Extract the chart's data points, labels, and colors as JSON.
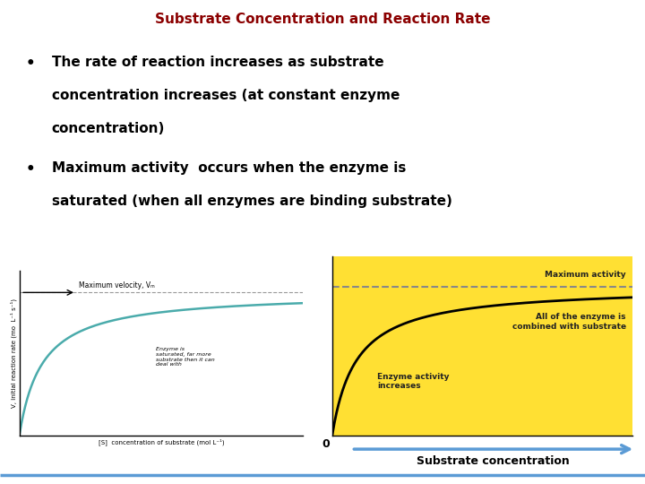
{
  "title": "Substrate Concentration and Reaction Rate",
  "title_color": "#8B0000",
  "title_fontsize": 11,
  "bullet1_line1": "The rate of reaction increases as substrate",
  "bullet1_line2": "concentration increases (at constant enzyme",
  "bullet1_line3": "concentration)",
  "bullet2_line1": "Maximum activity  occurs when the enzyme is",
  "bullet2_line2": "saturated (when all enzymes are binding substrate)",
  "bullet_fontsize": 11,
  "bg_color": "#FFFFFF",
  "graph_left_bg": "#FFFFFF",
  "graph_right_bg": "#FFE033",
  "curve_color_left": "#4AABAB",
  "curve_color_right": "#333333",
  "dashed_color": "#999999",
  "ylabel_left": "V, initial reaction rate (mo  L⁻¹ s⁻¹)",
  "xlabel_left": "[S]  concentration of substrate (mol L⁻¹)",
  "vmax_label": "Maximum velocity, Vₘ",
  "right_label_top": "Maximum activity",
  "right_label_mid": "All of the enzyme is\ncombined with substrate",
  "right_label_bot": "Enzyme activity\nincreases",
  "x_axis_label": "Substrate concentration",
  "enzyme_saturated_text": "Enzyme is\nsaturated, far more\nsubstrate then it can\ndeal with",
  "zero_label": "0",
  "bottom_line_color": "#5B9BD5",
  "arrow_color": "#5B9BD5"
}
